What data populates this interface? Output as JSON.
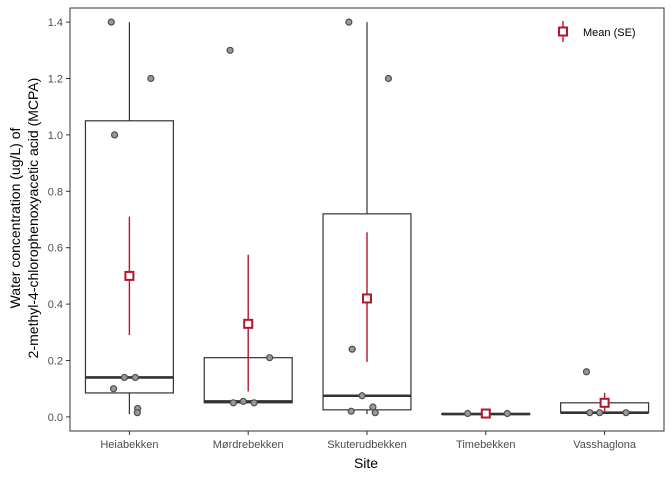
{
  "chart_data": {
    "type": "box",
    "xlabel": "Site",
    "ylabel_lines": [
      "Water concentration (ug/L) of",
      "2-methyl-4-chlorophenoxyacetic acid (MCPA)"
    ],
    "categories": [
      "Heiabekken",
      "Mørdrebekken",
      "Skuterudbekken",
      "Timebekken",
      "Vasshaglona"
    ],
    "ylim": [
      -0.05,
      1.45
    ],
    "yticks": [
      {
        "value": 0.0,
        "label": "0.0"
      },
      {
        "value": 0.2,
        "label": "0.2"
      },
      {
        "value": 0.4,
        "label": "0.4"
      },
      {
        "value": 0.6,
        "label": "0.6"
      },
      {
        "value": 0.8,
        "label": "0.8"
      },
      {
        "value": 1.0,
        "label": "1.0"
      },
      {
        "value": 1.2,
        "label": "1.2"
      },
      {
        "value": 1.4,
        "label": "1.4"
      }
    ],
    "boxes": [
      {
        "category": "Heiabekken",
        "q1": 0.085,
        "median": 0.14,
        "q3": 1.05,
        "whisker_low": 0.01,
        "whisker_high": 1.4
      },
      {
        "category": "Mørdrebekken",
        "q1": 0.05,
        "median": 0.055,
        "q3": 0.21,
        "whisker_low": 0.05,
        "whisker_high": 0.21
      },
      {
        "category": "Skuterudbekken",
        "q1": 0.025,
        "median": 0.075,
        "q3": 0.72,
        "whisker_low": 0.01,
        "whisker_high": 1.4
      },
      {
        "category": "Timebekken",
        "q1": 0.01,
        "median": 0.01,
        "q3": 0.012,
        "whisker_low": 0.01,
        "whisker_high": 0.012
      },
      {
        "category": "Vasshaglona",
        "q1": 0.015,
        "median": 0.015,
        "q3": 0.05,
        "whisker_low": 0.015,
        "whisker_high": 0.05
      }
    ],
    "points": [
      {
        "category": "Heiabekken",
        "values": [
          1.4,
          1.2,
          1.0,
          0.14,
          0.14,
          0.1,
          0.03,
          0.015
        ]
      },
      {
        "category": "Mørdrebekken",
        "values": [
          1.3,
          0.21,
          0.05,
          0.055,
          0.05
        ]
      },
      {
        "category": "Skuterudbekken",
        "values": [
          1.4,
          1.2,
          0.24,
          0.075,
          0.035,
          0.02,
          0.015
        ]
      },
      {
        "category": "Timebekken",
        "values": [
          0.012,
          0.012
        ]
      },
      {
        "category": "Vasshaglona",
        "values": [
          0.16,
          0.015,
          0.015,
          0.015
        ]
      }
    ],
    "series": [
      {
        "name": "Mean (SE)",
        "mean": [
          0.5,
          0.33,
          0.42,
          0.012,
          0.05
        ],
        "se_low": [
          0.29,
          0.09,
          0.195,
          0.012,
          0.02
        ],
        "se_high": [
          0.71,
          0.575,
          0.655,
          0.012,
          0.085
        ]
      }
    ],
    "legend_position": "top-right",
    "grid": false,
    "colors": {
      "mean": "#b2182b",
      "box": "#333333",
      "point_fill": "#999999",
      "point_stroke": "#4d4d4d",
      "panel_border": "#333333"
    }
  }
}
